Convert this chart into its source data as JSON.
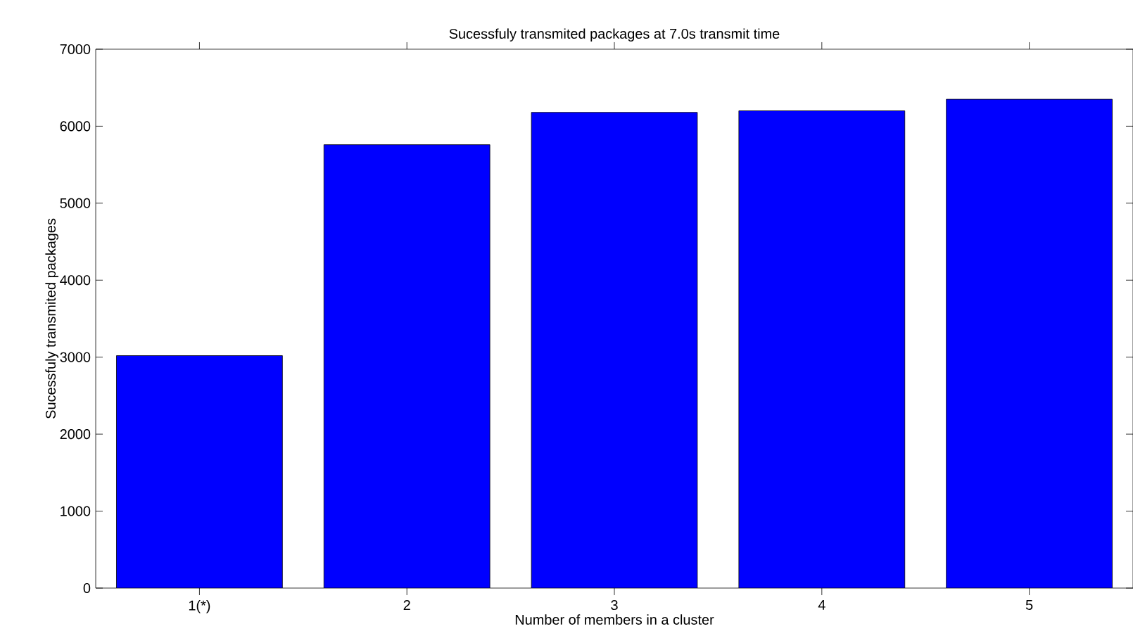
{
  "chart_data": {
    "type": "bar",
    "title": "Sucessfuly transmited packages at 7.0s transmit time",
    "xlabel": "Number of members in a cluster",
    "ylabel": "Sucessfuly transmited packages",
    "categories": [
      "1(*)",
      "2",
      "3",
      "4",
      "5"
    ],
    "values": [
      3020,
      5760,
      6180,
      6200,
      6350
    ],
    "color": "#0000ff",
    "ylim": [
      0,
      7000
    ],
    "yticks": [
      0,
      1000,
      2000,
      3000,
      4000,
      5000,
      6000,
      7000
    ],
    "grid": false
  }
}
